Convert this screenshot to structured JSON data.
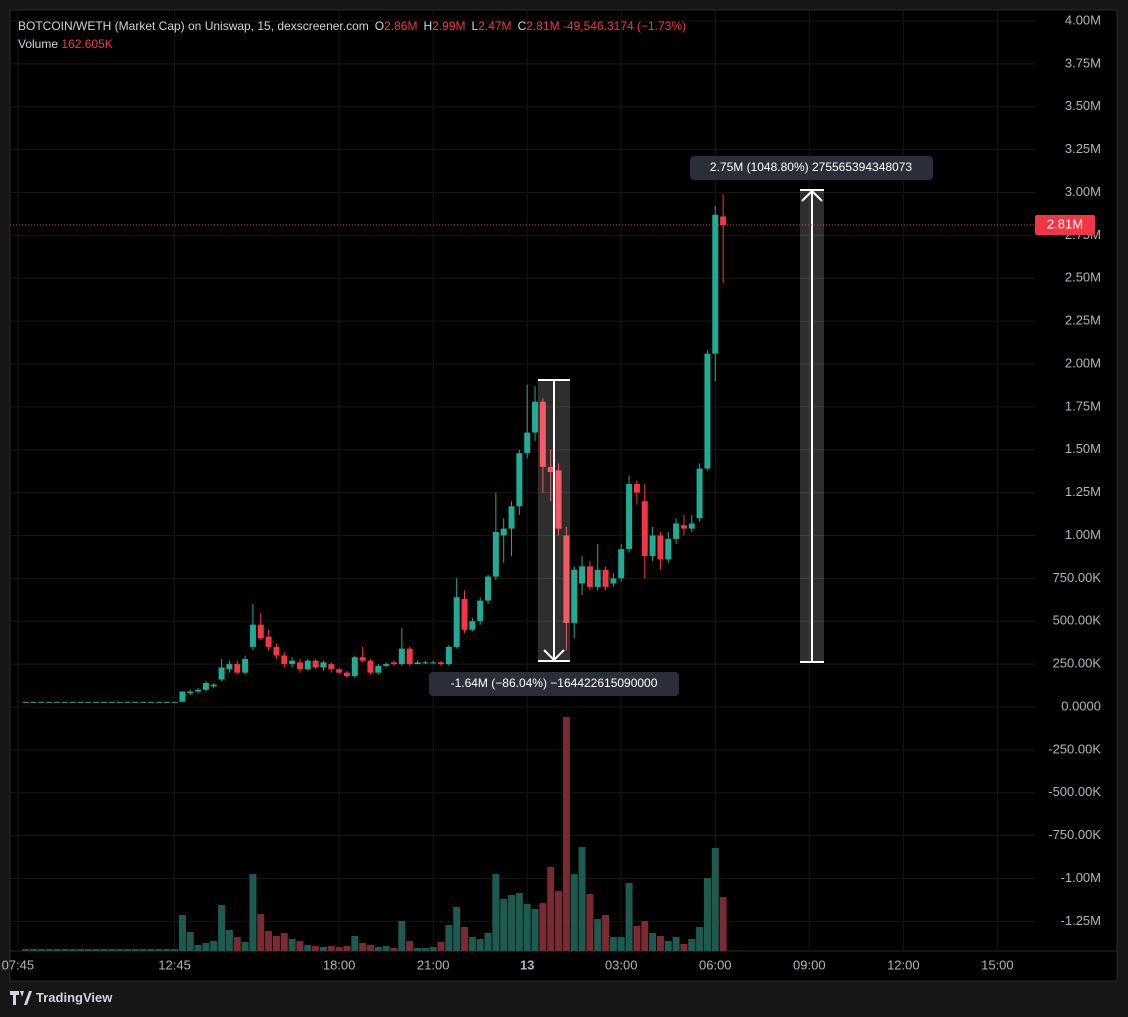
{
  "chart_data": {
    "type": "candlestick",
    "title": "BOTCOIN/WETH (Market Cap) on Uniswap, 15, dexscreener.com",
    "legend": {
      "items": [
        {
          "key": "O",
          "value": "2.86M"
        },
        {
          "key": "H",
          "value": "2.99M"
        },
        {
          "key": "L",
          "value": "2.47M"
        },
        {
          "key": "C",
          "value": "2.81M"
        }
      ],
      "change": "-49,546.3174 (−1.73%)"
    },
    "volume_label": "Volume",
    "volume_value": "162.605K",
    "up_color": "#22ab94",
    "down_color": "#f23645",
    "volume_up_color": "#1d5a50",
    "volume_down_color": "#7a2a30",
    "x": [
      8,
      8.25,
      8.5,
      8.75,
      9,
      9.25,
      9.5,
      9.75,
      10,
      10.25,
      10.5,
      10.75,
      11,
      11.25,
      11.5,
      11.75,
      12,
      12.25,
      12.5,
      12.75,
      13,
      13.25,
      13.5,
      13.75,
      14,
      14.25,
      14.5,
      14.75,
      15,
      15.25,
      15.5,
      15.75,
      16,
      16.25,
      16.5,
      16.75,
      17,
      17.25,
      17.5,
      17.75,
      18,
      18.25,
      18.5,
      18.75,
      19,
      19.25,
      19.5,
      19.75,
      20,
      20.25,
      20.5,
      20.75,
      21,
      21.25,
      21.5,
      21.75,
      22,
      22.25,
      22.5,
      22.75,
      23,
      23.25,
      23.5,
      23.75,
      24,
      24.25,
      24.5,
      24.75,
      25,
      25.25,
      25.5,
      25.75,
      26,
      26.25,
      26.5,
      26.75,
      27,
      27.25,
      27.5,
      27.75,
      28,
      28.25,
      28.5,
      28.75,
      29,
      29.25,
      29.5,
      29.75,
      30,
      30.25
    ],
    "open": [
      30000,
      30000,
      30000,
      30000,
      30000,
      30000,
      30000,
      30000,
      30000,
      30000,
      30000,
      30000,
      30000,
      30000,
      30000,
      30000,
      30000,
      30000,
      30000,
      30000,
      30000,
      80000,
      90000,
      100000,
      120000,
      160000,
      220000,
      250000,
      200000,
      350000,
      480000,
      410000,
      350000,
      300000,
      250000,
      260000,
      220000,
      270000,
      230000,
      250000,
      220000,
      200000,
      180000,
      290000,
      270000,
      200000,
      240000,
      260000,
      250000,
      340000,
      250000,
      260000,
      260000,
      260000,
      250000,
      350000,
      630000,
      450000,
      500000,
      620000,
      760000,
      1000000,
      1040000,
      1170000,
      1480000,
      1600000,
      1780000,
      1400000,
      1380000,
      1000000,
      490000,
      720000,
      820000,
      700000,
      800000,
      720000,
      750000,
      920000,
      1300000,
      1200000,
      880000,
      1000000,
      860000,
      980000,
      1060000,
      1040000,
      1100000,
      1390000,
      2060000,
      2860000
    ],
    "high": [
      30000,
      30000,
      30000,
      30000,
      30000,
      30000,
      30000,
      30000,
      30000,
      30000,
      30000,
      30000,
      30000,
      30000,
      30000,
      30000,
      30000,
      30000,
      30000,
      30000,
      90000,
      100000,
      110000,
      150000,
      140000,
      280000,
      270000,
      270000,
      300000,
      600000,
      550000,
      450000,
      370000,
      320000,
      290000,
      280000,
      280000,
      280000,
      270000,
      260000,
      230000,
      210000,
      300000,
      350000,
      280000,
      250000,
      260000,
      270000,
      460000,
      350000,
      270000,
      270000,
      270000,
      270000,
      360000,
      750000,
      680000,
      520000,
      640000,
      770000,
      1250000,
      1100000,
      1200000,
      1500000,
      1880000,
      1870000,
      1800000,
      1500000,
      1420000,
      1050000,
      820000,
      880000,
      850000,
      950000,
      820000,
      780000,
      950000,
      1350000,
      1320000,
      1300000,
      1050000,
      1020000,
      1020000,
      1100000,
      1120000,
      1120000,
      1420000,
      2080000,
      2920000,
      2990000
    ],
    "low": [
      30000,
      30000,
      30000,
      30000,
      30000,
      30000,
      30000,
      30000,
      30000,
      30000,
      30000,
      30000,
      30000,
      30000,
      30000,
      30000,
      30000,
      30000,
      30000,
      30000,
      30000,
      70000,
      80000,
      90000,
      110000,
      150000,
      200000,
      190000,
      190000,
      330000,
      390000,
      330000,
      280000,
      230000,
      230000,
      200000,
      210000,
      220000,
      210000,
      200000,
      190000,
      170000,
      170000,
      260000,
      190000,
      190000,
      230000,
      240000,
      240000,
      240000,
      250000,
      250000,
      250000,
      240000,
      240000,
      340000,
      430000,
      440000,
      480000,
      600000,
      740000,
      840000,
      880000,
      1120000,
      1450000,
      1550000,
      1250000,
      1200000,
      1000000,
      330000,
      400000,
      650000,
      680000,
      680000,
      680000,
      700000,
      730000,
      900000,
      1180000,
      750000,
      850000,
      800000,
      840000,
      950000,
      1000000,
      1020000,
      1080000,
      1380000,
      1900000,
      2470000
    ],
    "close": [
      30000,
      30000,
      30000,
      30000,
      30000,
      30000,
      30000,
      30000,
      30000,
      30000,
      30000,
      30000,
      30000,
      30000,
      30000,
      30000,
      30000,
      30000,
      30000,
      30000,
      90000,
      90000,
      100000,
      140000,
      130000,
      230000,
      250000,
      200000,
      280000,
      480000,
      400000,
      350000,
      300000,
      250000,
      270000,
      220000,
      270000,
      230000,
      260000,
      220000,
      200000,
      180000,
      290000,
      270000,
      200000,
      240000,
      250000,
      250000,
      340000,
      250000,
      260000,
      260000,
      260000,
      250000,
      350000,
      640000,
      450000,
      500000,
      620000,
      760000,
      1020000,
      1040000,
      1170000,
      1480000,
      1600000,
      1780000,
      1400000,
      1370000,
      1040000,
      490000,
      800000,
      820000,
      700000,
      800000,
      700000,
      750000,
      920000,
      1300000,
      1250000,
      880000,
      1000000,
      860000,
      980000,
      1070000,
      1040000,
      1070000,
      1390000,
      2060000,
      2870000,
      2810000
    ],
    "volume": [
      6000,
      6000,
      6000,
      6000,
      6000,
      6000,
      6000,
      6000,
      6000,
      6000,
      6000,
      6000,
      6000,
      6000,
      6000,
      6000,
      6000,
      6000,
      6000,
      6000,
      108400,
      57200,
      18100,
      24100,
      30100,
      138500,
      63200,
      42200,
      27100,
      231800,
      111400,
      60200,
      45200,
      54200,
      36100,
      30100,
      18100,
      15100,
      12000,
      15100,
      12000,
      15100,
      45200,
      24100,
      18100,
      12000,
      15100,
      9000,
      90300,
      30100,
      9000,
      9000,
      12000,
      27100,
      78300,
      132500,
      72300,
      42200,
      36100,
      54200,
      231800,
      156600,
      168600,
      174600,
      141500,
      126500,
      144500,
      252900,
      180700,
      704600,
      231800,
      313100,
      171600,
      96400,
      108400,
      42200,
      42200,
      204700,
      75300,
      90300,
      54200,
      45200,
      30100,
      42200,
      21100,
      36100,
      72300,
      219800,
      310100,
      162605
    ],
    "ylim": [
      -1423000,
      4064000
    ],
    "yticks": [
      {
        "value": -1250000,
        "label": "-1.25M"
      },
      {
        "value": -1000000,
        "label": "-1.00M"
      },
      {
        "value": -750000,
        "label": "-750.00K"
      },
      {
        "value": -500000,
        "label": "-500.00K"
      },
      {
        "value": -250000,
        "label": "-250.00K"
      },
      {
        "value": 0,
        "label": "0.0000"
      },
      {
        "value": 250000,
        "label": "250.00K"
      },
      {
        "value": 500000,
        "label": "500.00K"
      },
      {
        "value": 750000,
        "label": "750.00K"
      },
      {
        "value": 1000000,
        "label": "1.00M"
      },
      {
        "value": 1250000,
        "label": "1.25M"
      },
      {
        "value": 1500000,
        "label": "1.50M"
      },
      {
        "value": 1750000,
        "label": "1.75M"
      },
      {
        "value": 2000000,
        "label": "2.00M"
      },
      {
        "value": 2250000,
        "label": "2.25M"
      },
      {
        "value": 2500000,
        "label": "2.50M"
      },
      {
        "value": 2750000,
        "label": "2.75M"
      },
      {
        "value": 3000000,
        "label": "3.00M"
      },
      {
        "value": 3250000,
        "label": "3.25M"
      },
      {
        "value": 3500000,
        "label": "3.50M"
      },
      {
        "value": 3750000,
        "label": "3.75M"
      },
      {
        "value": 4000000,
        "label": "4.00M"
      }
    ],
    "xlim": [
      7.5,
      40.2
    ],
    "xticks": [
      {
        "value": 7.75,
        "label": "07:45"
      },
      {
        "value": 12.75,
        "label": "12:45"
      },
      {
        "value": 18,
        "label": "18:00"
      },
      {
        "value": 21,
        "label": "21:00"
      },
      {
        "value": 24,
        "label": "13"
      },
      {
        "value": 27,
        "label": "03:00"
      },
      {
        "value": 30,
        "label": "06:00"
      },
      {
        "value": 33,
        "label": "09:00"
      },
      {
        "value": 36,
        "label": "12:00"
      },
      {
        "value": 39,
        "label": "15:00"
      }
    ],
    "grid": true,
    "annotations": [
      "2.75M (1048.80%) 275565394348073",
      "-1.64M (−86.04%) −164422615090000"
    ],
    "footer": "TradingView"
  }
}
